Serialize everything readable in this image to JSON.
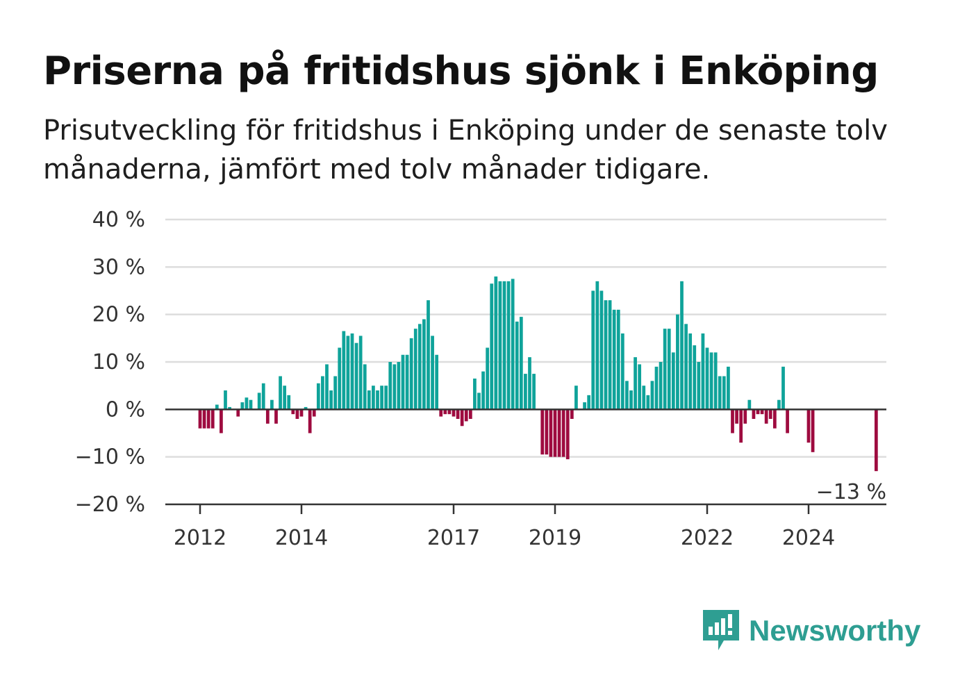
{
  "title": "Priserna på fritidshus sjönk i Enköping",
  "subtitle": "Prisutveckling för fritidshus i Enköping under de senaste tolv månaderna, jämfört med tolv månader tidigare.",
  "brand": {
    "name": "Newsworthy",
    "icon": "newsworthy-logo-icon",
    "color": "#2e9e92"
  },
  "colors": {
    "positive": "#0fa39a",
    "negative": "#9e0b3f",
    "grid": "#dddddd",
    "zero": "#333333"
  },
  "chart_data": {
    "type": "bar",
    "ylim": [
      -20,
      40
    ],
    "yticks": [
      40,
      30,
      20,
      10,
      0,
      -10,
      -20
    ],
    "ytick_labels": [
      "40 %",
      "30 %",
      "20 %",
      "10 %",
      "0 %",
      "−10 %",
      "−20 %"
    ],
    "x_start_year": 2012,
    "x_end_year": 2025.25,
    "xticks": [
      2012,
      2014,
      2017,
      2019,
      2022,
      2024
    ],
    "xtick_labels": [
      "2012",
      "2014",
      "2017",
      "2019",
      "2022",
      "2024"
    ],
    "last_label": "−13 %",
    "series": [
      {
        "values": [
          -4,
          -4,
          -4,
          -4,
          1,
          -5,
          4,
          0.5,
          0,
          -1.5,
          1.5,
          2.5,
          2,
          0,
          3.5,
          5.5,
          -3,
          2,
          -3,
          7,
          5,
          3,
          -1,
          -2,
          -1.5,
          0.5,
          -5,
          -1.5,
          5.5,
          7,
          9.5,
          4,
          7,
          13,
          16.5,
          15.5,
          16,
          14,
          15.5,
          9.5,
          4,
          5,
          4,
          5,
          5,
          10,
          9.5,
          10,
          11.5,
          11.5,
          15,
          17,
          18,
          19,
          23,
          15.5,
          11.5,
          -1.5,
          -1,
          -1,
          -1.5,
          -2,
          -3.5,
          -2.5,
          -2,
          6.5,
          3.5,
          8,
          13,
          26.5,
          28,
          27,
          27,
          27,
          27.5,
          18.5,
          19.5,
          7.5,
          11,
          7.5,
          0,
          -9.5,
          -9.5,
          -10,
          -10,
          -10,
          -10,
          -10.5,
          -2,
          5,
          0,
          1.5,
          3,
          25,
          27,
          25,
          23,
          23,
          21,
          21,
          16,
          6,
          4,
          11,
          9.5,
          5,
          3,
          6,
          9,
          10,
          17,
          17,
          12,
          20,
          27,
          18,
          16,
          13.5,
          10,
          16,
          13,
          12,
          12,
          7,
          7,
          9,
          -5,
          -3,
          -7,
          -3,
          2,
          -2,
          -1,
          -1,
          -3,
          -2,
          -4,
          2,
          9,
          -5,
          0,
          0,
          0,
          0,
          -7,
          -9,
          0,
          0,
          0,
          0,
          0,
          0,
          0,
          0,
          0,
          0,
          0,
          0,
          0,
          0,
          -13
        ]
      }
    ]
  }
}
